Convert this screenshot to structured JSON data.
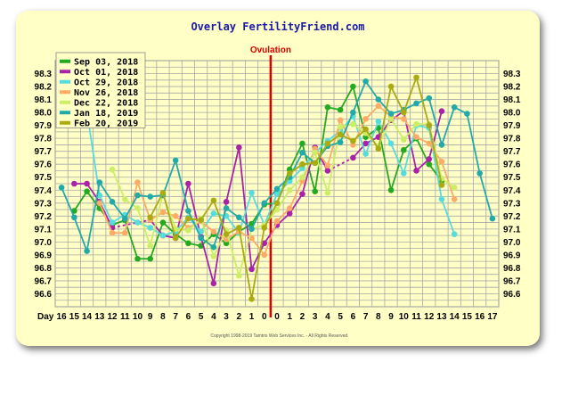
{
  "chart_data": {
    "type": "line",
    "title": "Overlay FertilityFriend.com",
    "marker_label": "Ovulation",
    "xlabel": "Day",
    "x_ticks": [
      "16",
      "15",
      "14",
      "13",
      "12",
      "11",
      "10",
      "9",
      "8",
      "7",
      "6",
      "5",
      "4",
      "3",
      "2",
      "1",
      "0",
      "0",
      "1",
      "2",
      "3",
      "4",
      "5",
      "6",
      "7",
      "8",
      "9",
      "10",
      "11",
      "12",
      "13",
      "14",
      "15",
      "16",
      "17"
    ],
    "ovulation_index": 16.5,
    "ylim": [
      96.5,
      98.4
    ],
    "y_ticks": [
      "96.6",
      "96.7",
      "96.8",
      "96.9",
      "97.0",
      "97.1",
      "97.2",
      "97.3",
      "97.4",
      "97.5",
      "97.6",
      "97.7",
      "97.8",
      "97.9",
      "98.0",
      "98.1",
      "98.2",
      "98.3"
    ],
    "copyright": "Copyright 1998-2019 Tamtris Web Services Inc. - All Rights Reserved.",
    "series": [
      {
        "name": "Sep 03, 2018",
        "color": "#22aa22",
        "values": [
          null,
          97.24,
          97.39,
          97.26,
          97.13,
          97.17,
          96.87,
          96.87,
          97.15,
          97.06,
          96.99,
          96.97,
          97.06,
          96.99,
          97.08,
          97.14,
          97.29,
          97.3,
          97.56,
          97.76,
          97.39,
          98.04,
          98.02,
          98.2,
          97.81,
          97.88,
          97.4,
          97.71,
          97.8,
          97.6,
          97.47,
          null,
          null,
          null,
          null
        ]
      },
      {
        "name": "Oct 01, 2018",
        "color": "#aa22aa",
        "values": [
          null,
          97.45,
          97.45,
          97.31,
          97.11,
          null,
          null,
          97.17,
          97.05,
          97.03,
          97.45,
          97.04,
          96.68,
          97.31,
          97.73,
          96.79,
          96.99,
          97.13,
          97.22,
          97.37,
          97.73,
          97.55,
          null,
          97.65,
          97.76,
          97.81,
          97.94,
          98.01,
          97.55,
          97.64,
          98.01,
          null,
          null,
          null,
          null
        ]
      },
      {
        "name": "Oct 29, 2018",
        "color": "#55dddd",
        "values": [
          null,
          null,
          98.01,
          97.36,
          97.15,
          97.21,
          97.15,
          97.11,
          97.05,
          97.08,
          97.19,
          97.08,
          97.22,
          97.2,
          97.07,
          97.38,
          97.13,
          97.37,
          97.47,
          97.57,
          97.69,
          97.78,
          97.86,
          97.97,
          97.68,
          97.93,
          97.76,
          97.53,
          97.9,
          97.88,
          97.33,
          97.06,
          null,
          null,
          null
        ]
      },
      {
        "name": "Nov 26, 2018",
        "color": "#ffaa66",
        "values": [
          null,
          null,
          null,
          97.3,
          97.07,
          97.07,
          97.46,
          97.17,
          97.23,
          97.2,
          97.11,
          97.16,
          97.08,
          97.02,
          97.08,
          97.03,
          96.9,
          97.16,
          97.26,
          97.47,
          97.72,
          97.59,
          97.94,
          97.75,
          97.95,
          98.05,
          97.97,
          97.95,
          97.81,
          97.76,
          97.62,
          97.33,
          null,
          null,
          null
        ]
      },
      {
        "name": "Dec 22, 2018",
        "color": "#ccee66",
        "values": [
          null,
          null,
          null,
          null,
          97.56,
          97.33,
          97.26,
          96.97,
          97.37,
          97.1,
          97.09,
          97.18,
          96.89,
          97.09,
          96.74,
          97.1,
          97.13,
          97.25,
          97.4,
          97.5,
          97.69,
          97.38,
          97.89,
          97.91,
          97.84,
          97.74,
          97.95,
          97.79,
          97.91,
          97.91,
          97.49,
          97.42,
          null,
          null,
          null
        ]
      },
      {
        "name": "Jan 18, 2019",
        "color": "#22aaaa",
        "values": [
          97.42,
          97.19,
          96.93,
          97.46,
          97.31,
          97.18,
          97.36,
          97.35,
          97.36,
          97.63,
          97.24,
          97.03,
          96.96,
          97.26,
          97.19,
          97.1,
          97.3,
          97.41,
          97.5,
          97.69,
          97.61,
          97.74,
          97.77,
          98.0,
          98.24,
          98.1,
          97.99,
          98.02,
          98.07,
          98.11,
          97.75,
          98.04,
          97.99,
          97.53,
          97.18
        ]
      },
      {
        "name": "Feb 20, 2019",
        "color": "#aaaa11",
        "values": [
          null,
          null,
          null,
          null,
          null,
          null,
          null,
          97.19,
          97.38,
          97.03,
          97.18,
          97.17,
          97.32,
          97.06,
          97.11,
          96.56,
          97.11,
          97.3,
          97.53,
          97.6,
          97.61,
          97.76,
          97.83,
          97.78,
          97.87,
          97.72,
          98.2,
          98.0,
          98.27,
          97.9,
          97.44,
          null,
          null,
          null,
          null
        ]
      }
    ]
  }
}
